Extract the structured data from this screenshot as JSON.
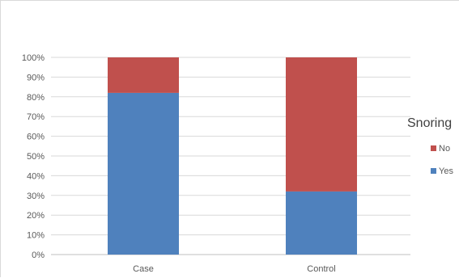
{
  "chart_data": {
    "type": "bar",
    "stacked": true,
    "categories": [
      "Case",
      "Control"
    ],
    "series": [
      {
        "name": "Yes",
        "color": "#4f81bd",
        "values": [
          82,
          32
        ]
      },
      {
        "name": "No",
        "color": "#c0504d",
        "values": [
          18,
          68
        ]
      }
    ],
    "y_ticks": [
      "0%",
      "10%",
      "20%",
      "30%",
      "40%",
      "50%",
      "60%",
      "70%",
      "80%",
      "90%",
      "100%"
    ],
    "ylim": [
      0,
      100
    ],
    "grid": true,
    "legend": {
      "title": "Snoring",
      "position": "right",
      "entries": [
        "No",
        "Yes"
      ]
    }
  }
}
